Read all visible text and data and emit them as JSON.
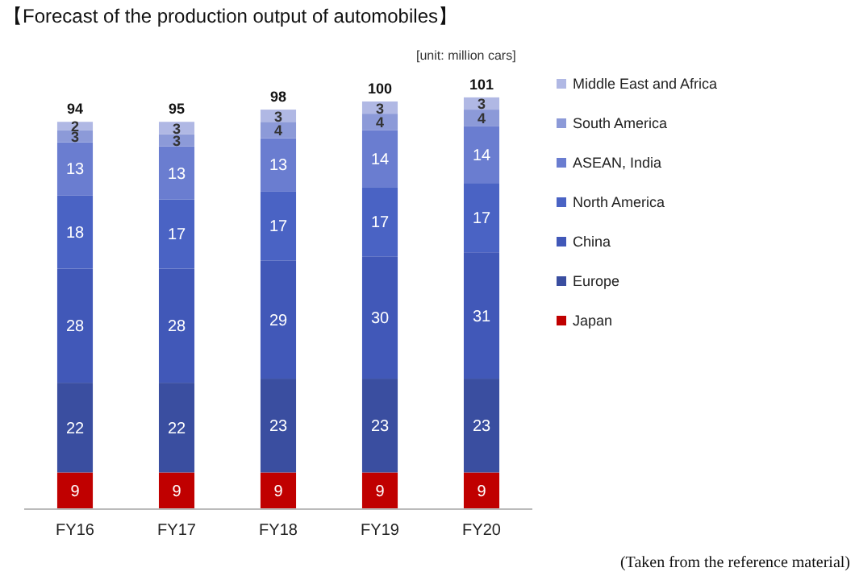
{
  "chart_data": {
    "type": "bar",
    "stacked": true,
    "title": "【Forecast of the production output of automobiles】",
    "subtitle": "[unit: million cars]",
    "annotations": [
      "(Taken from the reference material)"
    ],
    "categories": [
      "FY16",
      "FY17",
      "FY18",
      "FY19",
      "FY20"
    ],
    "series": [
      {
        "name": "Japan",
        "color": "#c00000",
        "values": [
          9,
          9,
          9,
          9,
          9
        ]
      },
      {
        "name": "Europe",
        "color": "#3a4ea0",
        "values": [
          22,
          22,
          23,
          23,
          23
        ]
      },
      {
        "name": "China",
        "color": "#4158b8",
        "values": [
          28,
          28,
          29,
          30,
          31
        ]
      },
      {
        "name": "North America",
        "color": "#4a63c4",
        "values": [
          18,
          17,
          17,
          17,
          17
        ]
      },
      {
        "name": "ASEAN, India",
        "color": "#6a7dd0",
        "values": [
          13,
          13,
          13,
          14,
          14
        ]
      },
      {
        "name": "South America",
        "color": "#8c9ad8",
        "values": [
          3,
          3,
          4,
          4,
          4
        ]
      },
      {
        "name": "Middle East and Africa",
        "color": "#b0b8e4",
        "values": [
          2,
          3,
          3,
          3,
          3
        ]
      }
    ],
    "totals": [
      "94",
      "95",
      "98",
      "100",
      "101"
    ],
    "data_labels": true,
    "legend": "right",
    "tick_labels": "x"
  }
}
